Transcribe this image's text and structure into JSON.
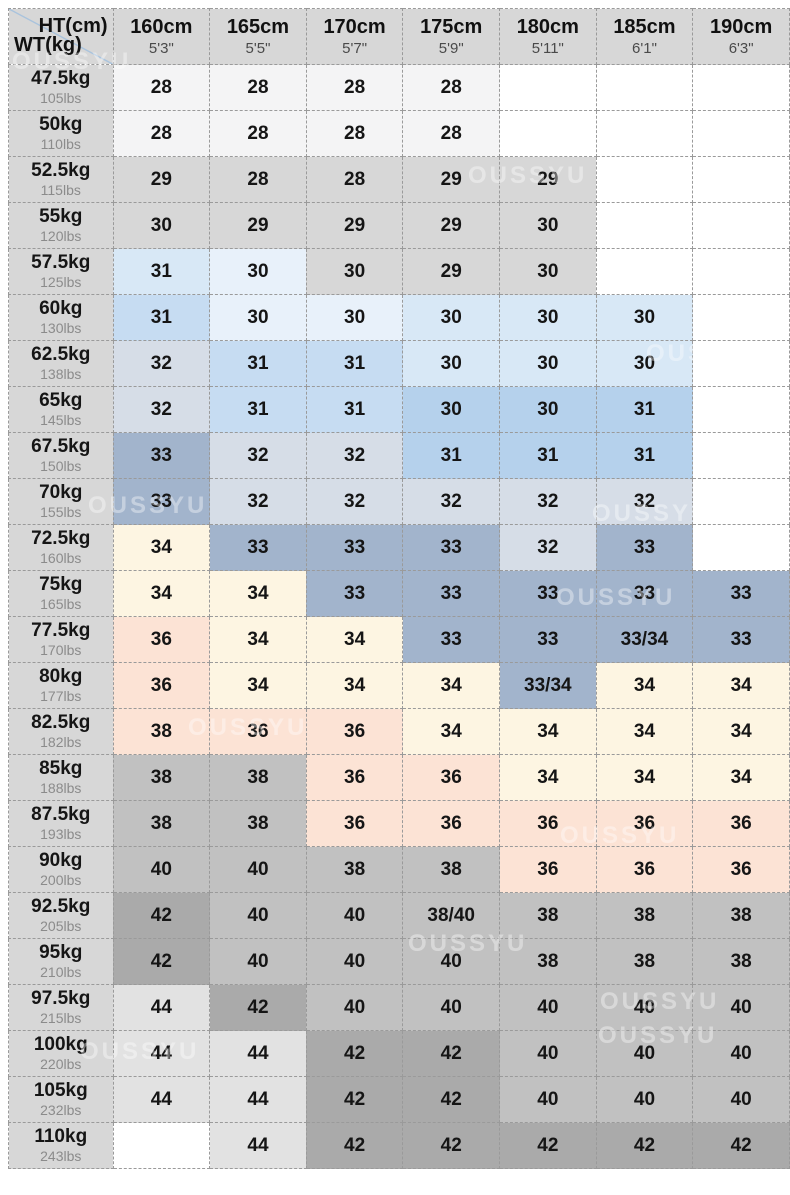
{
  "watermark_text": "OUSSYU",
  "chart_data": {
    "type": "table",
    "corner": {
      "top_label": "HT(cm)",
      "bottom_label": "WT(kg)"
    },
    "columns": [
      {
        "cm": "160cm",
        "ft": "5'3\""
      },
      {
        "cm": "165cm",
        "ft": "5'5\""
      },
      {
        "cm": "170cm",
        "ft": "5'7\""
      },
      {
        "cm": "175cm",
        "ft": "5'9\""
      },
      {
        "cm": "180cm",
        "ft": "5'11\""
      },
      {
        "cm": "185cm",
        "ft": "6'1\""
      },
      {
        "cm": "190cm",
        "ft": "6'3\""
      }
    ],
    "palette": {
      "w": "#ffffff",
      "ow": "#f4f4f5",
      "g1": "#d7d7d7",
      "gx": "#e2e2e2",
      "gm": "#c1c1c1",
      "gd": "#aaaaaa",
      "b0": "#e8f1fa",
      "b1": "#d8e8f6",
      "b2": "#c6dcf2",
      "b3": "#b5d1ec",
      "bg1": "#d6dde7",
      "sl": "#a2b4cc",
      "cr": "#fdf5e2",
      "pk": "#fce3d5",
      "border": "#9a9a9a",
      "diagonal": "#a9c3dd"
    },
    "rows": [
      {
        "kg": "47.5kg",
        "lbs": "105lbs",
        "cells": [
          {
            "v": "28",
            "bg": "ow"
          },
          {
            "v": "28",
            "bg": "ow"
          },
          {
            "v": "28",
            "bg": "ow"
          },
          {
            "v": "28",
            "bg": "ow"
          },
          {
            "v": "",
            "bg": "w"
          },
          {
            "v": "",
            "bg": "w"
          },
          {
            "v": "",
            "bg": "w"
          }
        ]
      },
      {
        "kg": "50kg",
        "lbs": "110lbs",
        "cells": [
          {
            "v": "28",
            "bg": "ow"
          },
          {
            "v": "28",
            "bg": "ow"
          },
          {
            "v": "28",
            "bg": "ow"
          },
          {
            "v": "28",
            "bg": "ow"
          },
          {
            "v": "",
            "bg": "w"
          },
          {
            "v": "",
            "bg": "w"
          },
          {
            "v": "",
            "bg": "w"
          }
        ]
      },
      {
        "kg": "52.5kg",
        "lbs": "115lbs",
        "cells": [
          {
            "v": "29",
            "bg": "g1"
          },
          {
            "v": "28",
            "bg": "g1"
          },
          {
            "v": "28",
            "bg": "g1"
          },
          {
            "v": "29",
            "bg": "g1"
          },
          {
            "v": "29",
            "bg": "g1"
          },
          {
            "v": "",
            "bg": "w"
          },
          {
            "v": "",
            "bg": "w"
          }
        ]
      },
      {
        "kg": "55kg",
        "lbs": "120lbs",
        "cells": [
          {
            "v": "30",
            "bg": "g1"
          },
          {
            "v": "29",
            "bg": "g1"
          },
          {
            "v": "29",
            "bg": "g1"
          },
          {
            "v": "29",
            "bg": "g1"
          },
          {
            "v": "30",
            "bg": "g1"
          },
          {
            "v": "",
            "bg": "w"
          },
          {
            "v": "",
            "bg": "w"
          }
        ]
      },
      {
        "kg": "57.5kg",
        "lbs": "125lbs",
        "cells": [
          {
            "v": "31",
            "bg": "b1"
          },
          {
            "v": "30",
            "bg": "b0"
          },
          {
            "v": "30",
            "bg": "g1"
          },
          {
            "v": "29",
            "bg": "g1"
          },
          {
            "v": "30",
            "bg": "g1"
          },
          {
            "v": "",
            "bg": "w"
          },
          {
            "v": "",
            "bg": "w"
          }
        ]
      },
      {
        "kg": "60kg",
        "lbs": "130lbs",
        "cells": [
          {
            "v": "31",
            "bg": "b2"
          },
          {
            "v": "30",
            "bg": "b0"
          },
          {
            "v": "30",
            "bg": "b0"
          },
          {
            "v": "30",
            "bg": "b1"
          },
          {
            "v": "30",
            "bg": "b1"
          },
          {
            "v": "30",
            "bg": "b1"
          },
          {
            "v": "",
            "bg": "w"
          }
        ]
      },
      {
        "kg": "62.5kg",
        "lbs": "138lbs",
        "cells": [
          {
            "v": "32",
            "bg": "bg1"
          },
          {
            "v": "31",
            "bg": "b2"
          },
          {
            "v": "31",
            "bg": "b2"
          },
          {
            "v": "30",
            "bg": "b1"
          },
          {
            "v": "30",
            "bg": "b1"
          },
          {
            "v": "30",
            "bg": "b1"
          },
          {
            "v": "",
            "bg": "w"
          }
        ]
      },
      {
        "kg": "65kg",
        "lbs": "145lbs",
        "cells": [
          {
            "v": "32",
            "bg": "bg1"
          },
          {
            "v": "31",
            "bg": "b2"
          },
          {
            "v": "31",
            "bg": "b2"
          },
          {
            "v": "30",
            "bg": "b3"
          },
          {
            "v": "30",
            "bg": "b3"
          },
          {
            "v": "31",
            "bg": "b3"
          },
          {
            "v": "",
            "bg": "w"
          }
        ]
      },
      {
        "kg": "67.5kg",
        "lbs": "150lbs",
        "cells": [
          {
            "v": "33",
            "bg": "sl"
          },
          {
            "v": "32",
            "bg": "bg1"
          },
          {
            "v": "32",
            "bg": "bg1"
          },
          {
            "v": "31",
            "bg": "b3"
          },
          {
            "v": "31",
            "bg": "b3"
          },
          {
            "v": "31",
            "bg": "b3"
          },
          {
            "v": "",
            "bg": "w"
          }
        ]
      },
      {
        "kg": "70kg",
        "lbs": "155lbs",
        "cells": [
          {
            "v": "33",
            "bg": "sl"
          },
          {
            "v": "32",
            "bg": "bg1"
          },
          {
            "v": "32",
            "bg": "bg1"
          },
          {
            "v": "32",
            "bg": "bg1"
          },
          {
            "v": "32",
            "bg": "bg1"
          },
          {
            "v": "32",
            "bg": "bg1"
          },
          {
            "v": "",
            "bg": "w"
          }
        ]
      },
      {
        "kg": "72.5kg",
        "lbs": "160lbs",
        "cells": [
          {
            "v": "34",
            "bg": "cr"
          },
          {
            "v": "33",
            "bg": "sl"
          },
          {
            "v": "33",
            "bg": "sl"
          },
          {
            "v": "33",
            "bg": "sl"
          },
          {
            "v": "32",
            "bg": "bg1"
          },
          {
            "v": "33",
            "bg": "sl"
          },
          {
            "v": "",
            "bg": "w"
          }
        ]
      },
      {
        "kg": "75kg",
        "lbs": "165lbs",
        "cells": [
          {
            "v": "34",
            "bg": "cr"
          },
          {
            "v": "34",
            "bg": "cr"
          },
          {
            "v": "33",
            "bg": "sl"
          },
          {
            "v": "33",
            "bg": "sl"
          },
          {
            "v": "33",
            "bg": "sl"
          },
          {
            "v": "33",
            "bg": "sl"
          },
          {
            "v": "33",
            "bg": "sl"
          }
        ]
      },
      {
        "kg": "77.5kg",
        "lbs": "170lbs",
        "cells": [
          {
            "v": "36",
            "bg": "pk"
          },
          {
            "v": "34",
            "bg": "cr"
          },
          {
            "v": "34",
            "bg": "cr"
          },
          {
            "v": "33",
            "bg": "sl"
          },
          {
            "v": "33",
            "bg": "sl"
          },
          {
            "v": "33/34",
            "bg": "sl"
          },
          {
            "v": "33",
            "bg": "sl"
          }
        ]
      },
      {
        "kg": "80kg",
        "lbs": "177lbs",
        "cells": [
          {
            "v": "36",
            "bg": "pk"
          },
          {
            "v": "34",
            "bg": "cr"
          },
          {
            "v": "34",
            "bg": "cr"
          },
          {
            "v": "34",
            "bg": "cr"
          },
          {
            "v": "33/34",
            "bg": "sl"
          },
          {
            "v": "34",
            "bg": "cr"
          },
          {
            "v": "34",
            "bg": "cr"
          }
        ]
      },
      {
        "kg": "82.5kg",
        "lbs": "182lbs",
        "cells": [
          {
            "v": "38",
            "bg": "pk"
          },
          {
            "v": "36",
            "bg": "pk"
          },
          {
            "v": "36",
            "bg": "pk"
          },
          {
            "v": "34",
            "bg": "cr"
          },
          {
            "v": "34",
            "bg": "cr"
          },
          {
            "v": "34",
            "bg": "cr"
          },
          {
            "v": "34",
            "bg": "cr"
          }
        ]
      },
      {
        "kg": "85kg",
        "lbs": "188lbs",
        "cells": [
          {
            "v": "38",
            "bg": "gm"
          },
          {
            "v": "38",
            "bg": "gm"
          },
          {
            "v": "36",
            "bg": "pk"
          },
          {
            "v": "36",
            "bg": "pk"
          },
          {
            "v": "34",
            "bg": "cr"
          },
          {
            "v": "34",
            "bg": "cr"
          },
          {
            "v": "34",
            "bg": "cr"
          }
        ]
      },
      {
        "kg": "87.5kg",
        "lbs": "193lbs",
        "cells": [
          {
            "v": "38",
            "bg": "gm"
          },
          {
            "v": "38",
            "bg": "gm"
          },
          {
            "v": "36",
            "bg": "pk"
          },
          {
            "v": "36",
            "bg": "pk"
          },
          {
            "v": "36",
            "bg": "pk"
          },
          {
            "v": "36",
            "bg": "pk"
          },
          {
            "v": "36",
            "bg": "pk"
          }
        ]
      },
      {
        "kg": "90kg",
        "lbs": "200lbs",
        "cells": [
          {
            "v": "40",
            "bg": "gm"
          },
          {
            "v": "40",
            "bg": "gm"
          },
          {
            "v": "38",
            "bg": "gm"
          },
          {
            "v": "38",
            "bg": "gm"
          },
          {
            "v": "36",
            "bg": "pk"
          },
          {
            "v": "36",
            "bg": "pk"
          },
          {
            "v": "36",
            "bg": "pk"
          }
        ]
      },
      {
        "kg": "92.5kg",
        "lbs": "205lbs",
        "cells": [
          {
            "v": "42",
            "bg": "gd"
          },
          {
            "v": "40",
            "bg": "gm"
          },
          {
            "v": "40",
            "bg": "gm"
          },
          {
            "v": "38/40",
            "bg": "gm"
          },
          {
            "v": "38",
            "bg": "gm"
          },
          {
            "v": "38",
            "bg": "gm"
          },
          {
            "v": "38",
            "bg": "gm"
          }
        ]
      },
      {
        "kg": "95kg",
        "lbs": "210lbs",
        "cells": [
          {
            "v": "42",
            "bg": "gd"
          },
          {
            "v": "40",
            "bg": "gm"
          },
          {
            "v": "40",
            "bg": "gm"
          },
          {
            "v": "40",
            "bg": "gm"
          },
          {
            "v": "38",
            "bg": "gm"
          },
          {
            "v": "38",
            "bg": "gm"
          },
          {
            "v": "38",
            "bg": "gm"
          }
        ]
      },
      {
        "kg": "97.5kg",
        "lbs": "215lbs",
        "cells": [
          {
            "v": "44",
            "bg": "gx"
          },
          {
            "v": "42",
            "bg": "gd"
          },
          {
            "v": "40",
            "bg": "gm"
          },
          {
            "v": "40",
            "bg": "gm"
          },
          {
            "v": "40",
            "bg": "gm"
          },
          {
            "v": "40",
            "bg": "gm"
          },
          {
            "v": "40",
            "bg": "gm"
          }
        ]
      },
      {
        "kg": "100kg",
        "lbs": "220lbs",
        "cells": [
          {
            "v": "44",
            "bg": "gx"
          },
          {
            "v": "44",
            "bg": "gx"
          },
          {
            "v": "42",
            "bg": "gd"
          },
          {
            "v": "42",
            "bg": "gd"
          },
          {
            "v": "40",
            "bg": "gm"
          },
          {
            "v": "40",
            "bg": "gm"
          },
          {
            "v": "40",
            "bg": "gm"
          }
        ]
      },
      {
        "kg": "105kg",
        "lbs": "232lbs",
        "cells": [
          {
            "v": "44",
            "bg": "gx"
          },
          {
            "v": "44",
            "bg": "gx"
          },
          {
            "v": "42",
            "bg": "gd"
          },
          {
            "v": "42",
            "bg": "gd"
          },
          {
            "v": "40",
            "bg": "gm"
          },
          {
            "v": "40",
            "bg": "gm"
          },
          {
            "v": "40",
            "bg": "gm"
          }
        ]
      },
      {
        "kg": "110kg",
        "lbs": "243lbs",
        "cells": [
          {
            "v": "",
            "bg": "w"
          },
          {
            "v": "44",
            "bg": "gx"
          },
          {
            "v": "42",
            "bg": "gd"
          },
          {
            "v": "42",
            "bg": "gd"
          },
          {
            "v": "42",
            "bg": "gd"
          },
          {
            "v": "42",
            "bg": "gd"
          },
          {
            "v": "42",
            "bg": "gd"
          }
        ]
      }
    ]
  }
}
